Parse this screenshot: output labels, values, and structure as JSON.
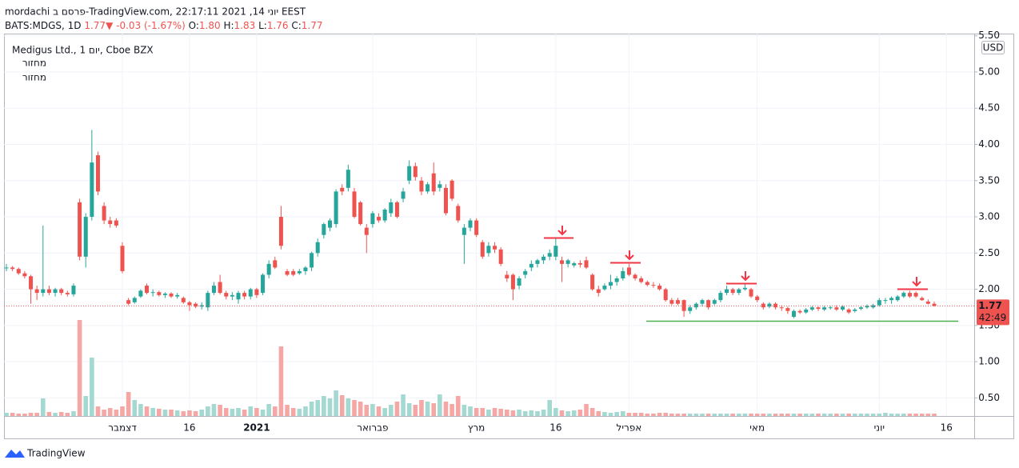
{
  "header": {
    "line1": "mordachi פרסם ב-TradingView.com, יוני 14, 2021 22:17:11 EEST",
    "symbol": "BATS:MDGS, 1D",
    "price": "1.77",
    "arrow": "▼",
    "change": "-0.03 (-1.67%)",
    "ohlc": [
      {
        "label": "O:",
        "value": "1.80"
      },
      {
        "label": "H:",
        "value": "1.83"
      },
      {
        "label": "L:",
        "value": "1.76"
      },
      {
        "label": "C:",
        "value": "1.77"
      }
    ],
    "instrument": "Medigus Ltd., יום 1, Cboe BZX",
    "indicators": [
      "מחזור",
      "מחזור"
    ]
  },
  "footer": {
    "brand": "TradingView"
  },
  "chart_data": {
    "type": "candlestick",
    "currency": "USD",
    "countdown": "42:49",
    "ylim": [
      0.25,
      5.53
    ],
    "yticks": [
      {
        "value": 0.5,
        "label": "0.50"
      },
      {
        "value": 1,
        "label": "1.00"
      },
      {
        "value": 1.5,
        "label": "1.50"
      },
      {
        "value": 2,
        "label": "2.00"
      },
      {
        "value": 2.5,
        "label": "2.50"
      },
      {
        "value": 3,
        "label": "3.00"
      },
      {
        "value": 3.5,
        "label": "3.50"
      },
      {
        "value": 4,
        "label": "4.00"
      },
      {
        "value": 4.5,
        "label": "4.50"
      },
      {
        "value": 5,
        "label": "5.00"
      },
      {
        "value": 5.5,
        "label": "5.50"
      }
    ],
    "xticks": [
      {
        "value": 19,
        "label": "דצמבר"
      },
      {
        "value": 30,
        "label": "16"
      },
      {
        "value": 41,
        "label": "2021"
      },
      {
        "value": 60,
        "label": "פברואר"
      },
      {
        "value": 77,
        "label": "מרץ"
      },
      {
        "value": 90,
        "label": "16"
      },
      {
        "value": 102,
        "label": "אפריל"
      },
      {
        "value": 123,
        "label": "מאי"
      },
      {
        "value": 143,
        "label": "יוני"
      },
      {
        "value": 154,
        "label": "16"
      }
    ],
    "grid": true,
    "up_color": "#26a69a",
    "down_color": "#ef5350",
    "volume_up_color": "#a3d9d1",
    "volume_down_color": "#f5a7a5",
    "vlim": [
      0,
      120
    ],
    "open": [
      2.3,
      2.3,
      2.28,
      2.22,
      2.18,
      2.0,
      1.95,
      2.0,
      1.95,
      2.0,
      1.95,
      1.93,
      3.2,
      2.45,
      3.0,
      3.85,
      3.15,
      2.95,
      2.95,
      2.6,
      1.85,
      1.82,
      1.9,
      2.05,
      1.95,
      1.96,
      1.92,
      1.94,
      1.9,
      1.88,
      1.82,
      1.8,
      1.76,
      1.75,
      1.95,
      2.1,
      1.95,
      1.9,
      1.86,
      1.95,
      1.9,
      2.0,
      1.95,
      2.2,
      2.4,
      3.0,
      2.25,
      2.25,
      2.22,
      2.25,
      2.3,
      2.5,
      2.75,
      2.85,
      2.9,
      3.4,
      3.4,
      3.35,
      3.2,
      2.85,
      2.9,
      3.0,
      2.95,
      3.05,
      3.2,
      3.25,
      3.5,
      3.7,
      3.5,
      3.35,
      3.6,
      3.4,
      3.4,
      3.5,
      3.15,
      2.75,
      2.85,
      2.95,
      2.65,
      2.5,
      2.6,
      2.55,
      2.2,
      2.2,
      2.05,
      2.2,
      2.3,
      2.35,
      2.4,
      2.45,
      2.45,
      2.4,
      2.35,
      2.33,
      2.36,
      2.4,
      2.2,
      2.0,
      2.0,
      2.05,
      2.1,
      2.15,
      2.3,
      2.2,
      2.15,
      2.1,
      2.06,
      2.05,
      2.0,
      1.85,
      1.85,
      1.85,
      1.7,
      1.75,
      1.8,
      1.85,
      1.8,
      1.85,
      1.95,
      2.0,
      1.95,
      2.0,
      2.0,
      1.9,
      1.8,
      1.76,
      1.8,
      1.75,
      1.74,
      1.62,
      1.7,
      1.68,
      1.72,
      1.75,
      1.72,
      1.74,
      1.75,
      1.72,
      1.72,
      1.7,
      1.73,
      1.75,
      1.75,
      1.78,
      1.84,
      1.85,
      1.85,
      1.9,
      1.95,
      1.95,
      1.88,
      1.83,
      1.8
    ],
    "high": [
      2.35,
      2.32,
      2.3,
      2.25,
      2.2,
      2.05,
      2.88,
      2.05,
      2.02,
      2.02,
      1.98,
      2.08,
      3.25,
      3.05,
      4.2,
      3.9,
      3.2,
      3.0,
      2.98,
      2.65,
      1.88,
      1.9,
      2.0,
      2.08,
      2.0,
      1.98,
      1.96,
      1.96,
      1.95,
      1.9,
      1.84,
      1.82,
      1.82,
      1.98,
      2.1,
      2.2,
      1.98,
      1.96,
      1.98,
      1.98,
      2.02,
      2.02,
      2.22,
      2.4,
      2.45,
      3.15,
      2.28,
      2.28,
      2.28,
      2.32,
      2.52,
      2.7,
      2.92,
      2.98,
      3.38,
      3.45,
      3.72,
      3.4,
      3.22,
      2.9,
      3.08,
      3.05,
      3.12,
      3.25,
      3.22,
      3.4,
      3.78,
      3.75,
      3.55,
      3.48,
      3.75,
      3.5,
      3.45,
      3.52,
      3.18,
      2.9,
      2.98,
      2.98,
      2.68,
      2.65,
      2.65,
      2.58,
      2.25,
      2.22,
      2.18,
      2.28,
      2.4,
      2.42,
      2.48,
      2.55,
      2.7,
      2.45,
      2.42,
      2.38,
      2.4,
      2.45,
      2.22,
      2.05,
      2.08,
      2.2,
      2.18,
      2.3,
      2.35,
      2.22,
      2.18,
      2.12,
      2.1,
      2.08,
      2.02,
      1.88,
      1.88,
      1.86,
      1.78,
      1.82,
      1.87,
      1.86,
      1.87,
      1.98,
      2.05,
      2.02,
      2.02,
      2.08,
      2.02,
      1.92,
      1.82,
      1.82,
      1.82,
      1.78,
      1.76,
      1.72,
      1.72,
      1.74,
      1.77,
      1.76,
      1.77,
      1.77,
      1.78,
      1.78,
      1.74,
      1.74,
      1.77,
      1.79,
      1.8,
      1.88,
      1.88,
      1.9,
      1.92,
      1.97,
      1.98,
      1.97,
      1.9,
      1.86,
      1.83
    ],
    "low": [
      2.25,
      2.25,
      2.2,
      2.15,
      1.8,
      1.85,
      1.9,
      1.92,
      1.9,
      1.92,
      1.9,
      1.9,
      2.4,
      2.3,
      2.95,
      3.3,
      2.9,
      2.85,
      2.85,
      2.22,
      1.78,
      1.8,
      1.88,
      1.93,
      1.9,
      1.9,
      1.88,
      1.88,
      1.87,
      1.8,
      1.7,
      1.74,
      1.72,
      1.7,
      1.92,
      1.93,
      1.86,
      1.85,
      1.8,
      1.86,
      1.86,
      1.88,
      1.92,
      2.15,
      2.28,
      2.55,
      2.18,
      2.18,
      2.2,
      2.2,
      2.25,
      2.45,
      2.7,
      2.8,
      2.85,
      3.3,
      3.35,
      2.98,
      2.88,
      2.5,
      2.85,
      2.92,
      2.92,
      3.0,
      2.98,
      3.2,
      3.45,
      3.5,
      3.3,
      3.32,
      3.3,
      3.35,
      3.02,
      3.22,
      2.92,
      2.35,
      2.8,
      2.72,
      2.42,
      2.45,
      2.5,
      2.32,
      2.1,
      1.85,
      2.0,
      2.15,
      2.25,
      2.3,
      2.35,
      2.4,
      2.4,
      2.1,
      2.3,
      2.3,
      2.3,
      2.28,
      1.98,
      1.9,
      1.98,
      2.0,
      2.05,
      2.12,
      2.18,
      2.12,
      2.08,
      2.04,
      2.02,
      1.98,
      1.83,
      1.78,
      1.78,
      1.62,
      1.66,
      1.72,
      1.76,
      1.72,
      1.78,
      1.82,
      1.92,
      1.92,
      1.92,
      1.98,
      1.88,
      1.82,
      1.72,
      1.74,
      1.72,
      1.7,
      1.66,
      1.6,
      1.66,
      1.66,
      1.7,
      1.7,
      1.7,
      1.72,
      1.7,
      1.7,
      1.66,
      1.68,
      1.71,
      1.73,
      1.73,
      1.76,
      1.8,
      1.8,
      1.83,
      1.88,
      1.88,
      1.88,
      1.84,
      1.79,
      1.76
    ],
    "close": [
      2.3,
      2.28,
      2.22,
      2.18,
      2.0,
      1.95,
      2.0,
      1.95,
      2.0,
      1.95,
      1.93,
      2.05,
      2.45,
      3.0,
      3.75,
      3.35,
      2.95,
      2.9,
      2.88,
      2.25,
      1.8,
      1.88,
      1.98,
      1.95,
      1.96,
      1.92,
      1.94,
      1.9,
      1.92,
      1.82,
      1.78,
      1.76,
      1.78,
      1.95,
      2.05,
      1.95,
      1.9,
      1.92,
      1.95,
      1.9,
      2.0,
      1.92,
      2.2,
      2.35,
      2.3,
      2.6,
      2.2,
      2.2,
      2.25,
      2.3,
      2.5,
      2.65,
      2.9,
      2.95,
      3.35,
      3.35,
      3.65,
      3.0,
      2.9,
      2.75,
      3.05,
      2.95,
      3.1,
      3.2,
      3.0,
      3.35,
      3.7,
      3.55,
      3.35,
      3.45,
      3.35,
      3.45,
      3.05,
      3.25,
      2.95,
      2.85,
      2.95,
      2.75,
      2.45,
      2.6,
      2.55,
      2.35,
      2.15,
      2.0,
      2.15,
      2.25,
      2.35,
      2.4,
      2.45,
      2.5,
      2.6,
      2.35,
      2.4,
      2.36,
      2.34,
      2.3,
      2.0,
      1.95,
      2.05,
      2.1,
      2.15,
      2.25,
      2.2,
      2.15,
      2.1,
      2.06,
      2.05,
      2.0,
      1.85,
      1.8,
      1.8,
      1.7,
      1.75,
      1.8,
      1.85,
      1.75,
      1.85,
      1.95,
      2.0,
      1.95,
      2.0,
      2.02,
      1.9,
      1.85,
      1.75,
      1.8,
      1.75,
      1.74,
      1.7,
      1.7,
      1.68,
      1.72,
      1.75,
      1.73,
      1.75,
      1.75,
      1.72,
      1.76,
      1.68,
      1.72,
      1.75,
      1.77,
      1.78,
      1.85,
      1.85,
      1.88,
      1.9,
      1.95,
      1.9,
      1.9,
      1.85,
      1.8,
      1.77
    ],
    "volume": [
      4,
      4,
      3,
      3,
      4,
      4,
      22,
      5,
      4,
      5,
      4,
      6,
      120,
      25,
      73,
      12,
      8,
      10,
      8,
      12,
      30,
      20,
      15,
      12,
      10,
      9,
      8,
      8,
      7,
      6,
      7,
      6,
      8,
      12,
      15,
      14,
      10,
      9,
      10,
      8,
      12,
      10,
      8,
      15,
      12,
      87,
      14,
      10,
      9,
      12,
      18,
      20,
      25,
      22,
      32,
      26,
      22,
      20,
      18,
      14,
      15,
      12,
      10,
      14,
      18,
      27,
      16,
      14,
      20,
      18,
      16,
      27,
      18,
      15,
      25,
      14,
      12,
      10,
      10,
      8,
      10,
      9,
      8,
      7,
      8,
      6,
      7,
      6,
      8,
      20,
      10,
      7,
      6,
      7,
      8,
      15,
      10,
      6,
      5,
      4,
      5,
      6,
      4,
      4,
      4,
      3,
      3,
      4,
      4,
      3,
      3,
      3,
      3,
      3,
      3,
      3,
      3,
      3,
      3,
      3,
      3,
      3,
      3,
      3,
      3,
      3,
      3,
      3,
      3,
      3,
      3,
      3,
      3,
      3,
      3,
      3,
      3,
      3,
      3,
      3,
      3,
      3,
      3,
      3,
      4,
      3,
      3,
      3,
      3,
      3,
      3,
      3,
      3
    ]
  }
}
